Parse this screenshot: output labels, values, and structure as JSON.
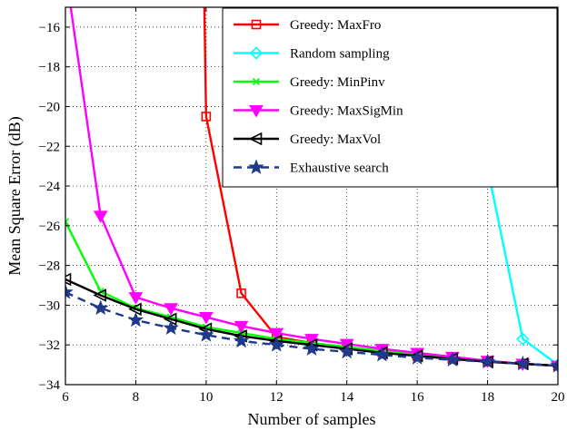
{
  "chart_data": {
    "type": "line",
    "title": "",
    "xlabel": "Number of samples",
    "ylabel": "Mean Square Error (dB)",
    "xlim": [
      6,
      20
    ],
    "ylim": [
      -34,
      -15
    ],
    "xticks": [
      6,
      8,
      10,
      12,
      14,
      16,
      18,
      20
    ],
    "yticks": [
      -34,
      -32,
      -30,
      -28,
      -26,
      -24,
      -22,
      -20,
      -18,
      -16
    ],
    "x_tick_labels": [
      "6",
      "8",
      "10",
      "12",
      "14",
      "16",
      "18",
      "20"
    ],
    "y_tick_labels": [
      "−34",
      "−32",
      "−30",
      "−28",
      "−26",
      "−24",
      "−22",
      "−20",
      "−18",
      "−16"
    ],
    "grid": true,
    "legend_position": "top-right",
    "series": [
      {
        "name": "Greedy: MaxFro",
        "color": "#ff0000",
        "marker": "square",
        "line_style": "solid",
        "x": [
          9.95,
          10,
          11,
          12,
          13,
          14,
          15,
          16,
          17,
          18,
          19,
          20
        ],
        "y": [
          -15,
          -20.5,
          -29.4,
          -31.6,
          -31.9,
          -32.15,
          -32.35,
          -32.55,
          -32.7,
          -32.85,
          -32.95,
          -33.05
        ]
      },
      {
        "name": "Random sampling",
        "color": "#00ffff",
        "marker": "diamond",
        "line_style": "solid",
        "x": [
          17.97,
          18,
          19,
          20
        ],
        "y": [
          -15,
          -23.1,
          -31.7,
          -33.0
        ]
      },
      {
        "name": "Greedy: MinPinv",
        "color": "#00ff00",
        "marker": "x",
        "line_style": "solid",
        "x": [
          6,
          7,
          8,
          9,
          10,
          11,
          12,
          13,
          14,
          15,
          16,
          17,
          18,
          19,
          20
        ],
        "y": [
          -25.8,
          -29.3,
          -30.15,
          -30.6,
          -31.1,
          -31.4,
          -31.7,
          -31.9,
          -32.1,
          -32.3,
          -32.5,
          -32.65,
          -32.8,
          -32.95,
          -33.05
        ]
      },
      {
        "name": "Greedy: MaxSigMin",
        "color": "#ff00ff",
        "marker": "triangle-down",
        "line_style": "solid",
        "x": [
          6.15,
          7,
          8,
          9,
          10,
          11,
          12,
          13,
          14,
          15,
          16,
          17,
          18,
          19,
          20
        ],
        "y": [
          -15,
          -25.5,
          -29.6,
          -30.15,
          -30.6,
          -31.05,
          -31.4,
          -31.7,
          -31.95,
          -32.2,
          -32.4,
          -32.6,
          -32.8,
          -32.95,
          -33.05
        ]
      },
      {
        "name": "Greedy: MaxVol",
        "color": "#000000",
        "marker": "triangle-left",
        "line_style": "solid",
        "x": [
          6,
          7,
          8,
          9,
          10,
          11,
          12,
          13,
          14,
          15,
          16,
          17,
          18,
          19,
          20
        ],
        "y": [
          -28.7,
          -29.5,
          -30.2,
          -30.7,
          -31.2,
          -31.55,
          -31.8,
          -32.0,
          -32.2,
          -32.4,
          -32.55,
          -32.7,
          -32.85,
          -32.95,
          -33.05
        ]
      },
      {
        "name": "Exhaustive search",
        "color": "#1f3a8a",
        "marker": "star",
        "line_style": "dashed",
        "x": [
          6,
          7,
          8,
          9,
          10,
          11,
          12,
          13,
          14,
          15,
          16,
          17,
          18,
          19,
          20
        ],
        "y": [
          -29.35,
          -30.15,
          -30.75,
          -31.15,
          -31.5,
          -31.8,
          -32.0,
          -32.2,
          -32.35,
          -32.5,
          -32.65,
          -32.75,
          -32.85,
          -32.95,
          -33.05
        ]
      }
    ]
  }
}
